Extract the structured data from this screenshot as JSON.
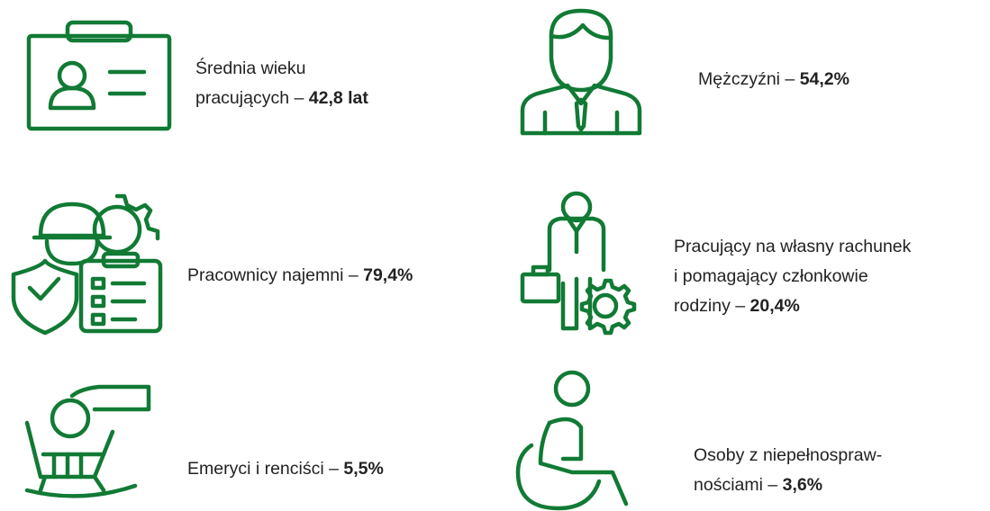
{
  "items": [
    {
      "lines": [
        "Średnia wieku",
        "pracujących –"
      ],
      "value": "42,8 lat"
    },
    {
      "lines": [
        "Mężczyźni –"
      ],
      "value": "54,2%"
    },
    {
      "lines": [
        "Pracownicy najemni –"
      ],
      "value": "79,4%"
    },
    {
      "lines": [
        "Pracujący na własny rachunek",
        "i pomagający członkowie",
        "rodziny –"
      ],
      "value": "20,4%"
    },
    {
      "lines": [
        "Emeryci i renciści –"
      ],
      "value": "5,5%"
    },
    {
      "lines": [
        "Osoby z niepełnospraw-",
        "nościami –"
      ],
      "value": "3,6%"
    }
  ]
}
